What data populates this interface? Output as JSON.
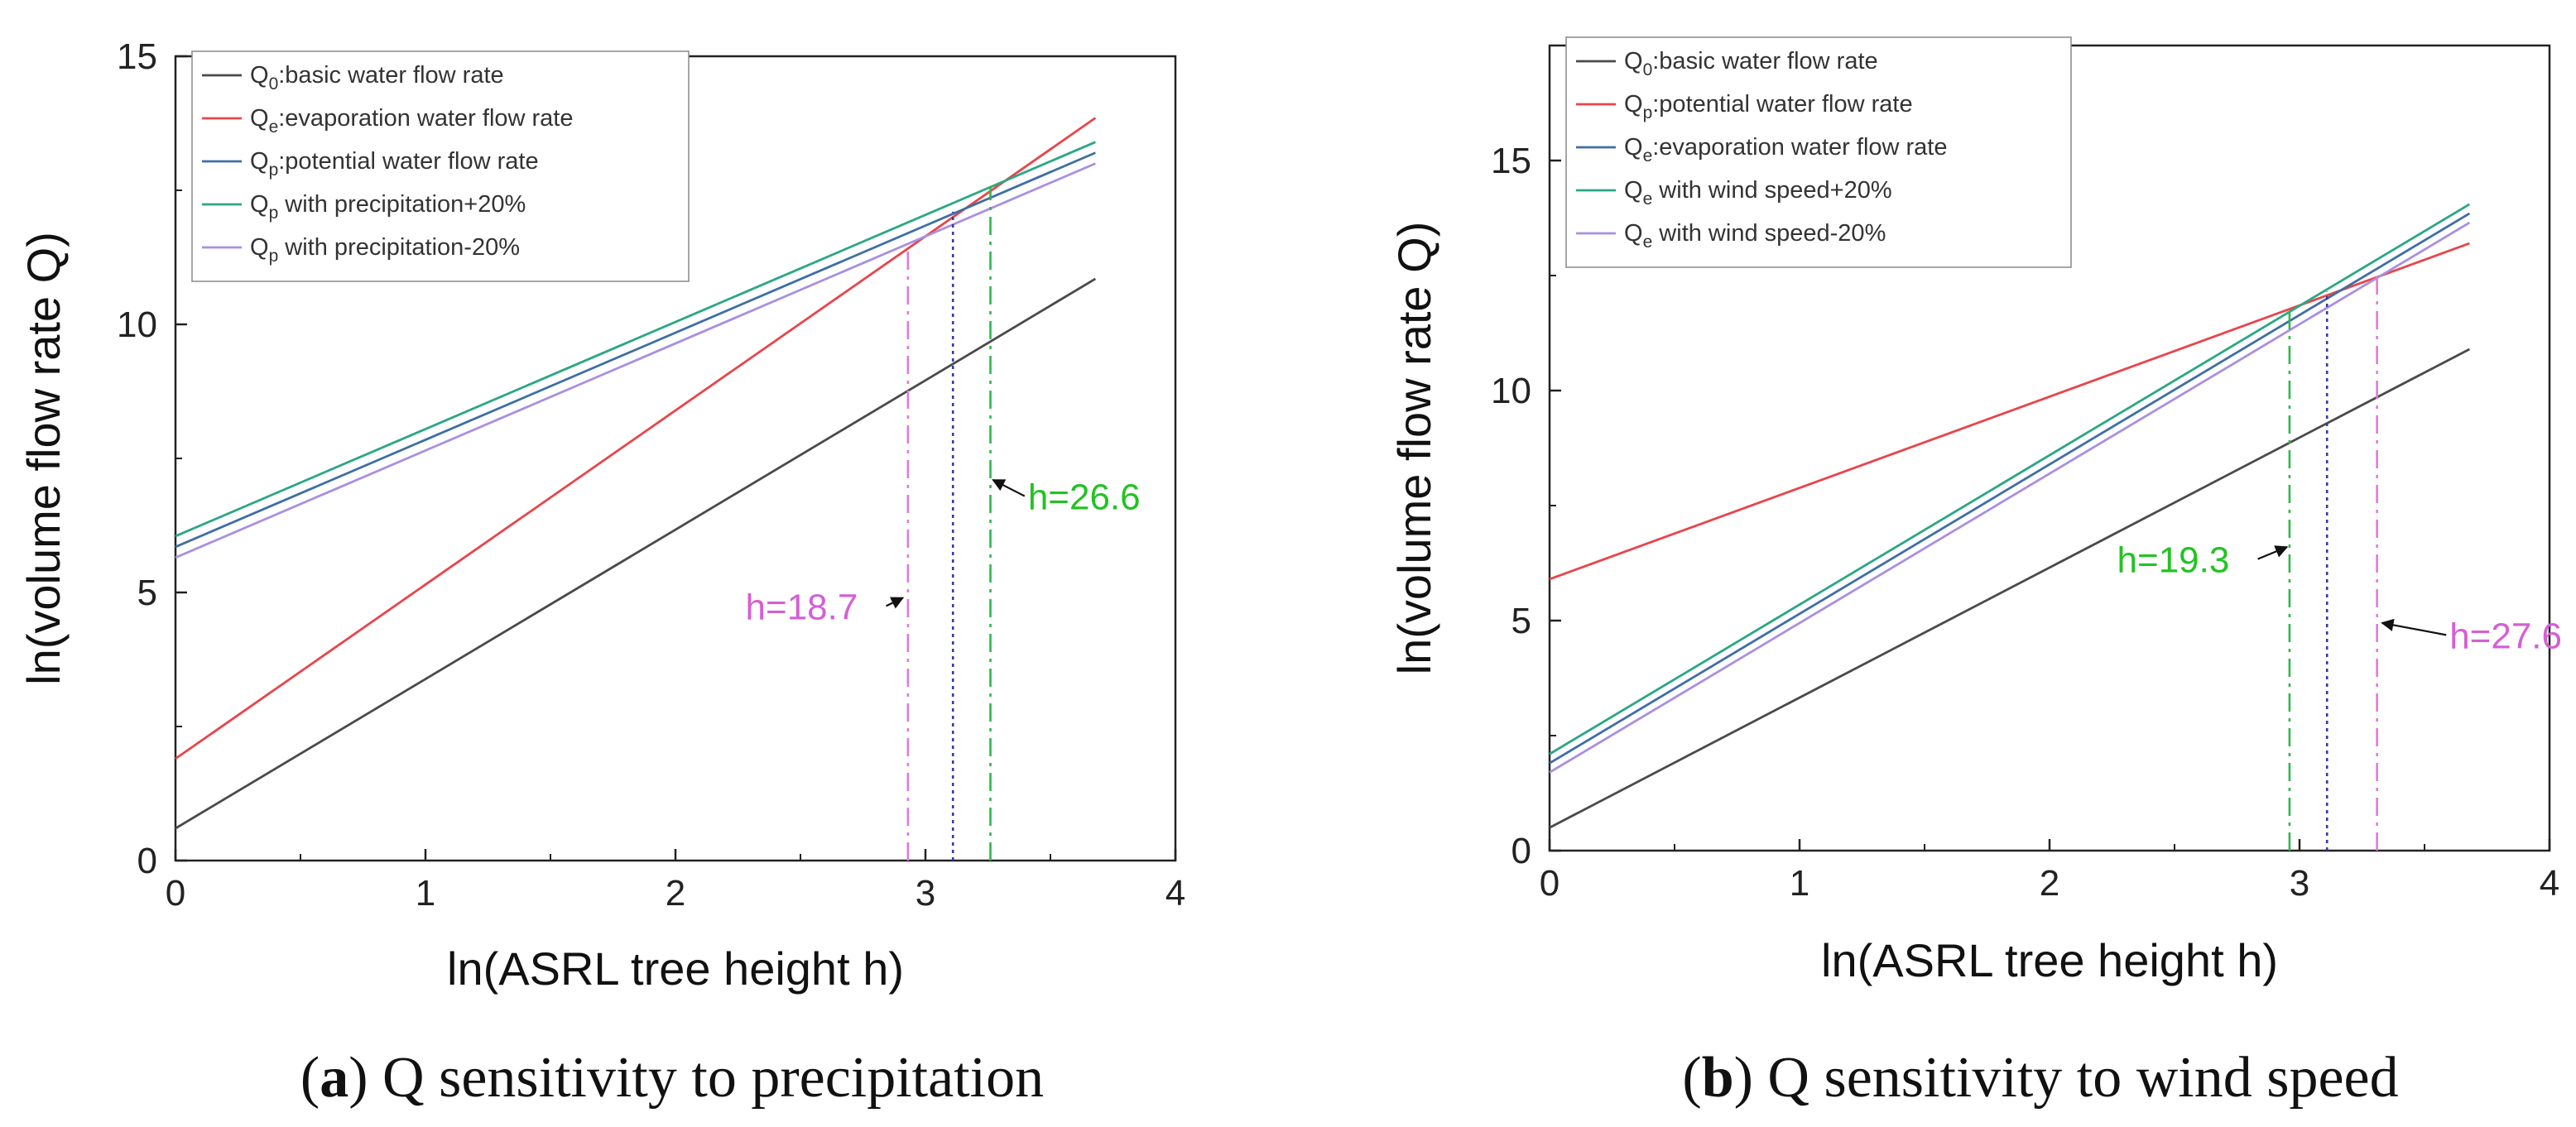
{
  "chart_data": [
    {
      "type": "line",
      "panel_letter": "a",
      "caption": "Q sensitivity to precipitation",
      "xlabel": "ln(ASRL tree height h)",
      "ylabel": "ln(volume flow rate Q)",
      "xlim": [
        0,
        4
      ],
      "ylim": [
        0,
        15
      ],
      "xticks": [
        0,
        1,
        2,
        3,
        4
      ],
      "yticks": [
        0,
        5,
        10,
        15
      ],
      "grid": false,
      "legend_position": "top-left",
      "series": [
        {
          "name": "Q0:basic water flow rate",
          "label_main": "Q",
          "label_sub": "0",
          "label_rest": ":basic water flow rate",
          "color": "#4a4a4a",
          "x": [
            0,
            3.68
          ],
          "y": [
            0.6,
            10.85
          ]
        },
        {
          "name": "Qe:evaporation water flow rate",
          "label_main": "Q",
          "label_sub": "e",
          "label_rest": ":evaporation water flow rate",
          "color": "#e8454b",
          "x": [
            0,
            3.68
          ],
          "y": [
            1.9,
            13.85
          ]
        },
        {
          "name": "Qp:potential water flow rate",
          "label_main": "Q",
          "label_sub": "p",
          "label_rest": ":potential water flow rate",
          "color": "#3f6ea6",
          "x": [
            0,
            3.68
          ],
          "y": [
            5.85,
            13.2
          ]
        },
        {
          "name": "Qp with precipitation+20%",
          "label_main": "Q",
          "label_sub": "p",
          "label_rest": " with precipitation+20%",
          "color": "#2aa784",
          "x": [
            0,
            3.68
          ],
          "y": [
            6.05,
            13.4
          ]
        },
        {
          "name": "Qp with precipitation-20%",
          "label_main": "Q",
          "label_sub": "p",
          "label_rest": " with precipitation-20%",
          "color": "#a98fe0",
          "x": [
            0,
            3.68
          ],
          "y": [
            5.65,
            13.0
          ]
        }
      ],
      "vlines": [
        {
          "x": 2.93,
          "y_top": 11.4,
          "color": "#e07ad8",
          "dash": "22 8 4 8"
        },
        {
          "x": 3.11,
          "y_top": 12.1,
          "color": "#3a3aa0",
          "dash": "4 5"
        },
        {
          "x": 3.26,
          "y_top": 12.55,
          "color": "#2db84a",
          "dash": "22 8 4 8"
        }
      ],
      "annotations": [
        {
          "text": "h=18.7",
          "color": "#d55fd5",
          "x": 2.28,
          "y": 4.5,
          "arrow_to_x": 2.91,
          "arrow_to_y": 4.9
        },
        {
          "text": "h=26.6",
          "color": "#22c322",
          "x": 3.41,
          "y": 6.55,
          "arrow_to_x": 3.27,
          "arrow_to_y": 7.1
        }
      ]
    },
    {
      "type": "line",
      "panel_letter": "b",
      "caption": "Q sensitivity to wind speed",
      "xlabel": "ln(ASRL tree height h)",
      "ylabel": "ln(volume flow rate Q)",
      "xlim": [
        0,
        4
      ],
      "ylim": [
        0,
        17.5
      ],
      "xticks": [
        0,
        1,
        2,
        3,
        4
      ],
      "yticks": [
        0,
        5,
        10,
        15
      ],
      "grid": false,
      "legend_position": "top-left",
      "series": [
        {
          "name": "Q0:basic water flow rate",
          "label_main": "Q",
          "label_sub": "0",
          "label_rest": ":basic water flow rate",
          "color": "#4a4a4a",
          "x": [
            0,
            3.68
          ],
          "y": [
            0.5,
            10.9
          ]
        },
        {
          "name": "Qp:potential water flow rate",
          "label_main": "Q",
          "label_sub": "p",
          "label_rest": ":potential water flow rate",
          "color": "#e8454b",
          "x": [
            0,
            3.68
          ],
          "y": [
            5.9,
            13.2
          ]
        },
        {
          "name": "Qe:evaporation water flow rate",
          "label_main": "Q",
          "label_sub": "e",
          "label_rest": ":evaporation water flow rate",
          "color": "#3f6ea6",
          "x": [
            0,
            3.68
          ],
          "y": [
            1.9,
            13.85
          ]
        },
        {
          "name": "Qe with wind speed+20%",
          "label_main": "Q",
          "label_sub": "e",
          "label_rest": " with wind speed+20%",
          "color": "#2aa784",
          "x": [
            0,
            3.68
          ],
          "y": [
            2.1,
            14.05
          ]
        },
        {
          "name": "Qe with wind speed-20%",
          "label_main": "Q",
          "label_sub": "e",
          "label_rest": " with wind speed-20%",
          "color": "#a98fe0",
          "x": [
            0,
            3.68
          ],
          "y": [
            1.7,
            13.65
          ]
        }
      ],
      "vlines": [
        {
          "x": 2.96,
          "y_top": 11.8,
          "color": "#2db84a",
          "dash": "22 8 4 8"
        },
        {
          "x": 3.11,
          "y_top": 12.15,
          "color": "#3a3aa0",
          "dash": "4 5"
        },
        {
          "x": 3.31,
          "y_top": 12.5,
          "color": "#e07ad8",
          "dash": "22 8 4 8"
        }
      ],
      "annotations": [
        {
          "text": "h=19.3",
          "color": "#22c322",
          "x": 2.27,
          "y": 6.05,
          "arrow_to_x": 2.95,
          "arrow_to_y": 6.6
        },
        {
          "text": "h=27.6",
          "color": "#d55fd5",
          "x": 3.6,
          "y": 4.4,
          "arrow_to_x": 3.33,
          "arrow_to_y": 4.95
        }
      ]
    }
  ]
}
